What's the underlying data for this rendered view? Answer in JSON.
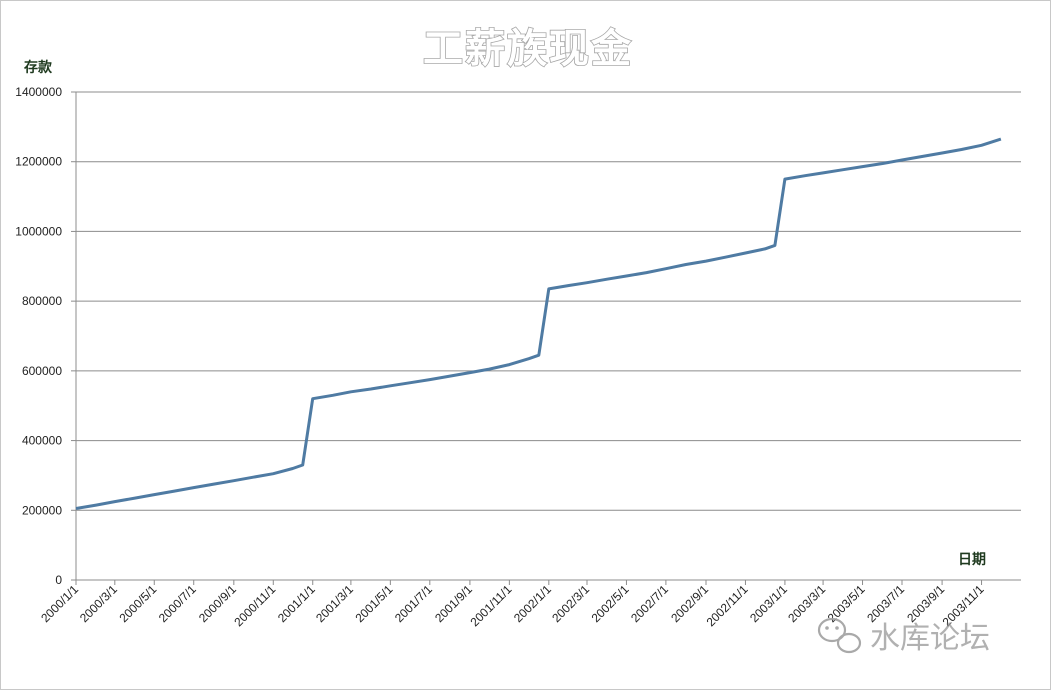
{
  "chart_data": {
    "type": "line",
    "title": "工薪族现金",
    "ylabel": "存款",
    "xlabel": "日期",
    "ylim": [
      0,
      1400000
    ],
    "yticks": [
      0,
      200000,
      400000,
      600000,
      800000,
      1000000,
      1200000,
      1400000
    ],
    "ytick_labels": [
      "0",
      "200000",
      "400000",
      "600000",
      "800000",
      "1000000",
      "1200000",
      "1400000"
    ],
    "x_start": "2000/1/1",
    "x_end": "2004/1/1",
    "xtick_labels": [
      "2000/1/1",
      "2000/3/1",
      "2000/5/1",
      "2000/7/1",
      "2000/9/1",
      "2000/11/1",
      "2001/1/1",
      "2001/3/1",
      "2001/5/1",
      "2001/7/1",
      "2001/9/1",
      "2001/11/1",
      "2002/1/1",
      "2002/3/1",
      "2002/5/1",
      "2002/7/1",
      "2002/9/1",
      "2002/11/1",
      "2003/1/1",
      "2003/3/1",
      "2003/5/1",
      "2003/7/1",
      "2003/9/1",
      "2003/11/1"
    ],
    "grid": true,
    "legend": "none",
    "series": [
      {
        "color": "#4f7ba3",
        "x": [
          "2000/1/1",
          "2000/2/1",
          "2000/3/1",
          "2000/4/1",
          "2000/5/1",
          "2000/6/1",
          "2000/7/1",
          "2000/8/1",
          "2000/9/1",
          "2000/10/1",
          "2000/11/1",
          "2000/12/1",
          "2001/1/1",
          "2001/2/1",
          "2001/3/1",
          "2001/4/1",
          "2001/5/1",
          "2001/6/1",
          "2001/7/1",
          "2001/8/1",
          "2001/9/1",
          "2001/10/1",
          "2001/11/1",
          "2001/12/1",
          "2002/1/1",
          "2002/2/1",
          "2002/3/1",
          "2002/4/1",
          "2002/5/1",
          "2002/6/1",
          "2002/7/1",
          "2002/8/1",
          "2002/9/1",
          "2002/10/1",
          "2002/11/1",
          "2002/12/1",
          "2003/1/1",
          "2003/2/1",
          "2003/3/1",
          "2003/4/1",
          "2003/5/1",
          "2003/6/1",
          "2003/7/1",
          "2003/8/1",
          "2003/9/1",
          "2003/10/1",
          "2003/11/1",
          "2003/12/1"
        ],
        "values": [
          205000,
          215000,
          225000,
          235000,
          245000,
          255000,
          265000,
          275000,
          285000,
          295000,
          305000,
          320000,
          520000,
          530000,
          540000,
          548000,
          557000,
          566000,
          575000,
          585000,
          595000,
          605000,
          618000,
          635000,
          835000,
          845000,
          853000,
          863000,
          872000,
          882000,
          893000,
          905000,
          915000,
          926000,
          938000,
          950000,
          1150000,
          1160000,
          1168000,
          1177000,
          1186000,
          1195000,
          1205000,
          1215000,
          1225000,
          1235000,
          1247000,
          1265000
        ]
      }
    ]
  },
  "watermark": {
    "icon": "wechat-icon",
    "text": "水库论坛"
  }
}
